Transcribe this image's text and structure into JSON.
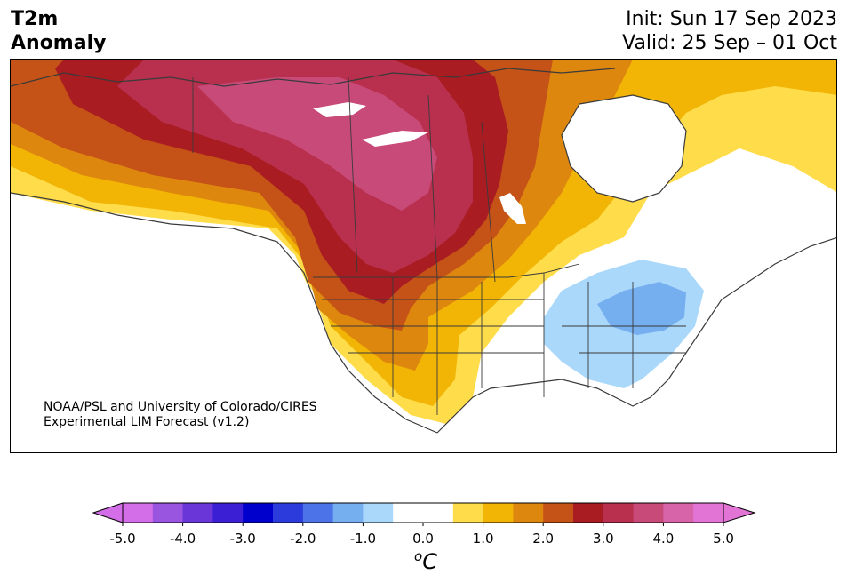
{
  "header": {
    "title_line1": "T2m",
    "title_line2": "Anomaly",
    "init": "Init: Sun 17 Sep 2023",
    "valid": "Valid: 25 Sep – 01 Oct"
  },
  "credit": {
    "line1": "NOAA/PSL and University of Colorado/CIRES",
    "line2": "Experimental LIM Forecast (v1.2)"
  },
  "colorbar": {
    "unit": "C",
    "unit_prefix": "o",
    "tick_labels": [
      "-5.0",
      "-4.0",
      "-3.0",
      "-2.0",
      "-1.0",
      "0.0",
      "1.0",
      "2.0",
      "3.0",
      "4.0",
      "5.0"
    ],
    "bins": [
      "#d46ee8",
      "#9a55e0",
      "#6a36d8",
      "#3b1fd4",
      "#0000cc",
      "#2b3bdc",
      "#4c73e8",
      "#76aff0",
      "#aad8fa",
      "#ffffff",
      "#ffffff",
      "#fedc4a",
      "#f2b505",
      "#de870f",
      "#c55216",
      "#a91c22",
      "#b92f4e",
      "#c84a78",
      "#d763a8",
      "#e274d6"
    ],
    "under_color": "#d46ee8",
    "over_color": "#e274d6"
  },
  "map": {
    "region": "North America",
    "field_colors": {
      "very_warm": "#c84a78",
      "warm3": "#b92f4e",
      "warm25": "#a91c22",
      "warm2": "#c55216",
      "warm15": "#de870f",
      "warm1": "#f2b505",
      "warm05": "#fedc4a",
      "cool05": "#aad8fa",
      "cool1": "#76aff0",
      "neutral": "#ffffff"
    }
  }
}
